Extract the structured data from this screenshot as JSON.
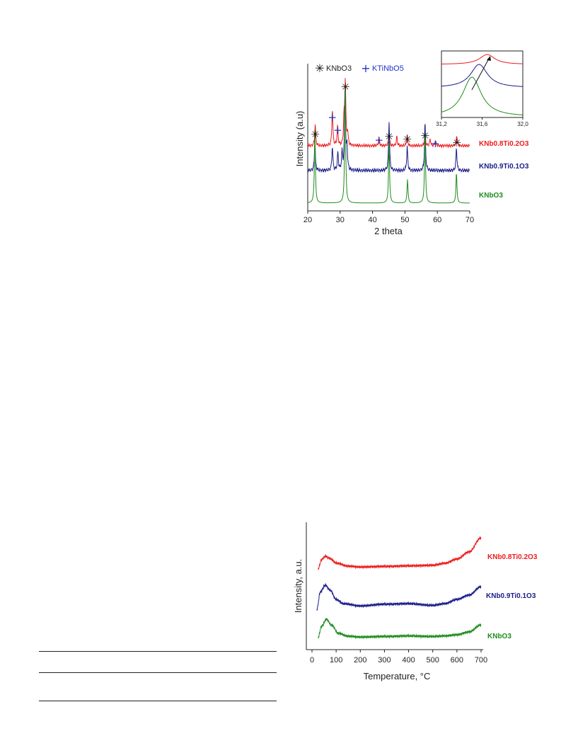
{
  "xrd": {
    "chart_data": {
      "type": "line",
      "xlabel": "2 theta",
      "ylabel": "Intensity (a.u)",
      "xlim": [
        20,
        70
      ],
      "x_ticks": [
        "20",
        "30",
        "40",
        "50",
        "60",
        "70"
      ],
      "legend": [
        {
          "marker": "*",
          "label": "KNbO3",
          "color": "#111111"
        },
        {
          "marker": "+",
          "label": "KTiNbO5",
          "color": "#2233cc"
        }
      ],
      "series": [
        {
          "name": "KNb0.8Ti0.2O3",
          "color": "#ee1c1c",
          "peaks": [
            [
              22.3,
              0.32
            ],
            [
              27.6,
              0.55
            ],
            [
              29.2,
              0.28
            ],
            [
              31.2,
              0.4
            ],
            [
              31.6,
              0.95
            ],
            [
              32.3,
              0.2
            ],
            [
              42,
              0.12
            ],
            [
              45.1,
              0.2
            ],
            [
              47.5,
              0.14
            ],
            [
              50.7,
              0.16
            ],
            [
              56.2,
              0.18
            ],
            [
              57.8,
              0.1
            ],
            [
              59.4,
              0.08
            ],
            [
              66,
              0.16
            ]
          ]
        },
        {
          "name": "KNb0.9Ti0.1O3",
          "color": "#1b1b8a",
          "peaks": [
            [
              22.2,
              0.35
            ],
            [
              27.6,
              0.3
            ],
            [
              29.3,
              0.22
            ],
            [
              30.6,
              0.22
            ],
            [
              31.5,
              1.0
            ],
            [
              32.1,
              0.3
            ],
            [
              45.1,
              0.62
            ],
            [
              50.7,
              0.3
            ],
            [
              56.2,
              0.6
            ],
            [
              65.9,
              0.28
            ]
          ]
        },
        {
          "name": "KNbO3",
          "color": "#1e8c1e",
          "peaks": [
            [
              22.2,
              0.62
            ],
            [
              31.55,
              1.0
            ],
            [
              45.1,
              0.52
            ],
            [
              50.8,
              0.2
            ],
            [
              56.2,
              0.62
            ],
            [
              65.9,
              0.26
            ]
          ]
        }
      ],
      "peak_markers": [
        {
          "marker": "*",
          "x": 22.3
        },
        {
          "marker": "*",
          "x": 31.6
        },
        {
          "marker": "*",
          "x": 45.1
        },
        {
          "marker": "*",
          "x": 50.7
        },
        {
          "marker": "*",
          "x": 56.2
        },
        {
          "marker": "*",
          "x": 66
        },
        {
          "marker": "+",
          "x": 27.6
        },
        {
          "marker": "+",
          "x": 29.3
        },
        {
          "marker": "+",
          "x": 42
        },
        {
          "marker": "+",
          "x": 59.4
        }
      ],
      "inset": {
        "xlim": [
          31.2,
          32.0
        ],
        "x_ticks": [
          "31,2",
          "31,6",
          "32,0"
        ],
        "peak_centers": {
          "KNb0.8Ti0.2O3": 31.65,
          "KNb0.9Ti0.1O3": 31.57,
          "KNbO3": 31.5
        }
      }
    }
  },
  "thermo": {
    "chart_data": {
      "type": "line",
      "xlabel": "Temperature, °C",
      "ylabel": "Intensity, a.u.",
      "xlim": [
        0,
        700
      ],
      "x_ticks": [
        "0",
        "100",
        "200",
        "300",
        "400",
        "500",
        "600",
        "700"
      ],
      "series": [
        {
          "name": "KNb0.8Ti0.2O3",
          "color": "#ee1c1c",
          "points": [
            [
              25,
              0.45
            ],
            [
              40,
              0.78
            ],
            [
              55,
              0.9
            ],
            [
              75,
              0.82
            ],
            [
              100,
              0.66
            ],
            [
              150,
              0.55
            ],
            [
              200,
              0.52
            ],
            [
              300,
              0.54
            ],
            [
              400,
              0.56
            ],
            [
              500,
              0.58
            ],
            [
              550,
              0.65
            ],
            [
              600,
              0.8
            ],
            [
              650,
              1.05
            ],
            [
              700,
              1.55
            ]
          ]
        },
        {
          "name": "KNb0.9Ti0.1O3",
          "color": "#1b1b8a",
          "points": [
            [
              20,
              0.1
            ],
            [
              35,
              0.72
            ],
            [
              55,
              0.95
            ],
            [
              75,
              0.78
            ],
            [
              100,
              0.45
            ],
            [
              130,
              0.3
            ],
            [
              200,
              0.22
            ],
            [
              300,
              0.28
            ],
            [
              400,
              0.3
            ],
            [
              500,
              0.24
            ],
            [
              550,
              0.3
            ],
            [
              600,
              0.45
            ],
            [
              650,
              0.6
            ],
            [
              700,
              0.9
            ]
          ]
        },
        {
          "name": "KNbO3",
          "color": "#1e8c1e",
          "points": [
            [
              25,
              0.1
            ],
            [
              40,
              0.5
            ],
            [
              60,
              0.75
            ],
            [
              80,
              0.55
            ],
            [
              110,
              0.25
            ],
            [
              150,
              0.15
            ],
            [
              200,
              0.12
            ],
            [
              300,
              0.14
            ],
            [
              400,
              0.16
            ],
            [
              500,
              0.14
            ],
            [
              550,
              0.16
            ],
            [
              600,
              0.2
            ],
            [
              650,
              0.3
            ],
            [
              700,
              0.55
            ]
          ]
        }
      ]
    }
  }
}
